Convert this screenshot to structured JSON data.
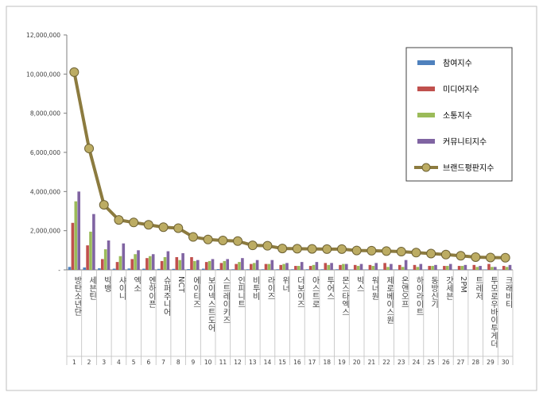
{
  "chart_data": {
    "type": "bar",
    "title": "",
    "xlabel": "",
    "ylabel": "",
    "ylim": [
      0,
      12000000
    ],
    "y_ticks": [
      "-",
      "2,000,000",
      "4,000,000",
      "6,000,000",
      "8,000,000",
      "10,000,000",
      "12,000,000"
    ],
    "grid": false,
    "legend_position": "top-right",
    "x": [
      "1",
      "2",
      "3",
      "4",
      "5",
      "6",
      "7",
      "8",
      "9",
      "10",
      "11",
      "12",
      "13",
      "14",
      "15",
      "16",
      "17",
      "18",
      "19",
      "20",
      "21",
      "22",
      "23",
      "24",
      "25",
      "26",
      "27",
      "28",
      "29",
      "30"
    ],
    "categories": [
      "방탄소년단",
      "세븐틴",
      "빅뱅",
      "샤이니",
      "엑소",
      "엔하이픈",
      "슈퍼주니어",
      "NCT",
      "에이티즈",
      "보이넥스트도어",
      "스트레이키즈",
      "인피니트",
      "비투비",
      "라이즈",
      "위너",
      "더보이즈",
      "아스트로",
      "투어스",
      "몬스타엑스",
      "빅스",
      "워너원",
      "제로베이스원",
      "온앤오프",
      "하이라이트",
      "동방신기",
      "갓세븐",
      "2PM",
      "트레저",
      "투모로우바이투게더",
      "크래비티"
    ],
    "series": [
      {
        "name": "참여지수",
        "type": "bar",
        "color": "#4f81bd",
        "values": [
          150000,
          120000,
          80000,
          60000,
          70000,
          60000,
          50000,
          50000,
          40000,
          60000,
          40000,
          30000,
          30000,
          30000,
          30000,
          30000,
          30000,
          30000,
          30000,
          20000,
          20000,
          20000,
          20000,
          20000,
          20000,
          20000,
          20000,
          20000,
          20000,
          20000
        ]
      },
      {
        "name": "미디어지수",
        "type": "bar",
        "color": "#c0504d",
        "values": [
          2400000,
          1250000,
          550000,
          400000,
          550000,
          600000,
          450000,
          650000,
          650000,
          400000,
          350000,
          300000,
          300000,
          300000,
          250000,
          200000,
          200000,
          350000,
          250000,
          250000,
          250000,
          350000,
          250000,
          250000,
          200000,
          200000,
          200000,
          250000,
          300000,
          200000
        ]
      },
      {
        "name": "소통지수",
        "type": "bar",
        "color": "#9bbb59",
        "values": [
          3500000,
          1950000,
          1050000,
          700000,
          800000,
          700000,
          650000,
          500000,
          450000,
          450000,
          450000,
          400000,
          350000,
          300000,
          300000,
          200000,
          250000,
          250000,
          300000,
          200000,
          200000,
          150000,
          150000,
          150000,
          200000,
          200000,
          200000,
          150000,
          150000,
          150000
        ]
      },
      {
        "name": "커뮤니티지수",
        "type": "bar",
        "color": "#8064a2",
        "values": [
          4000000,
          2850000,
          1500000,
          1350000,
          1000000,
          800000,
          950000,
          850000,
          500000,
          550000,
          550000,
          600000,
          500000,
          500000,
          350000,
          400000,
          400000,
          350000,
          300000,
          300000,
          350000,
          300000,
          500000,
          300000,
          250000,
          300000,
          250000,
          200000,
          150000,
          250000
        ]
      },
      {
        "name": "브랜드평판지수",
        "type": "line",
        "color": "#8c7b3f",
        "values": [
          10100000,
          6200000,
          3320000,
          2550000,
          2420000,
          2300000,
          2180000,
          2130000,
          1680000,
          1550000,
          1500000,
          1470000,
          1250000,
          1230000,
          1090000,
          1080000,
          1070000,
          1060000,
          1060000,
          990000,
          980000,
          960000,
          930000,
          880000,
          830000,
          780000,
          720000,
          650000,
          630000,
          620000
        ]
      }
    ]
  }
}
